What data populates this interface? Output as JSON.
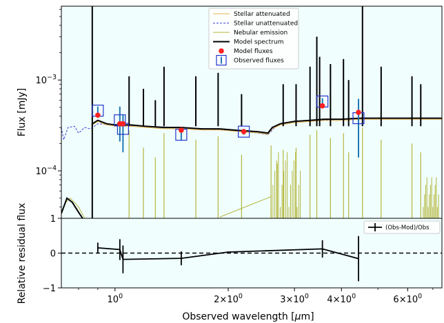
{
  "chart_data": [
    {
      "type": "line",
      "xlabel": "",
      "ylabel": "Flux [mJy]",
      "xscale": "log",
      "yscale": "log",
      "xlim": [
        0.72,
        7.4
      ],
      "ylim": [
        3e-05,
        0.0065
      ],
      "y_ticks": [
        {
          "value": 0.0001,
          "label": "10^-4"
        },
        {
          "value": 0.001,
          "label": "10^-3"
        }
      ],
      "legend": {
        "placement": "top-center",
        "entries": [
          {
            "name": "Stellar attenuated",
            "color": "#e8b24a",
            "style": "line"
          },
          {
            "name": "Stellar unattenuated",
            "color": "#3b3bd6",
            "style": "dashed"
          },
          {
            "name": "Nebular emission",
            "color": "#b5b53a",
            "style": "line"
          },
          {
            "name": "Model spectrum",
            "color": "#000000",
            "style": "thick-line"
          },
          {
            "name": "Model fluxes",
            "color": "#ff2020",
            "style": "dot"
          },
          {
            "name": "Observed fluxes",
            "color": "#1f77b4",
            "style": "errorbar-square",
            "edge_color": "#2233cc"
          }
        ]
      },
      "model_fluxes": [
        {
          "x": 0.9,
          "y": 0.00041
        },
        {
          "x": 1.03,
          "y": 0.00033
        },
        {
          "x": 1.05,
          "y": 0.00033
        },
        {
          "x": 1.5,
          "y": 0.00028
        },
        {
          "x": 2.2,
          "y": 0.00027
        },
        {
          "x": 3.56,
          "y": 0.00052
        },
        {
          "x": 4.44,
          "y": 0.00044
        }
      ],
      "observed_fluxes": [
        {
          "x": 0.9,
          "y": 0.00046,
          "err": 5e-05
        },
        {
          "x": 1.03,
          "y": 0.00036,
          "err": 0.00015
        },
        {
          "x": 1.05,
          "y": 0.00029,
          "err": 0.00013
        },
        {
          "x": 1.5,
          "y": 0.00025,
          "err": 3e-05
        },
        {
          "x": 2.2,
          "y": 0.00027,
          "err": 2e-05
        },
        {
          "x": 3.56,
          "y": 0.00058,
          "err": 5e-05
        },
        {
          "x": 4.44,
          "y": 0.00038,
          "err": 0.00024
        }
      ],
      "model_spectrum_continuum": [
        [
          0.87,
          0.00033
        ],
        [
          0.9,
          0.00036
        ],
        [
          0.95,
          0.00033
        ],
        [
          1.0,
          0.00032
        ],
        [
          1.1,
          0.00032
        ],
        [
          1.2,
          0.00031
        ],
        [
          1.35,
          0.0003
        ],
        [
          1.5,
          0.0003
        ],
        [
          1.7,
          0.00029
        ],
        [
          1.9,
          0.00029
        ],
        [
          2.1,
          0.00028
        ],
        [
          2.4,
          0.00027
        ],
        [
          2.55,
          0.00026
        ],
        [
          2.62,
          0.0003
        ],
        [
          2.75,
          0.00033
        ],
        [
          3.0,
          0.00035
        ],
        [
          3.3,
          0.00036
        ],
        [
          3.6,
          0.00037
        ],
        [
          4.0,
          0.00037
        ],
        [
          4.5,
          0.00038
        ],
        [
          5.0,
          0.00038
        ],
        [
          6.0,
          0.00038
        ],
        [
          7.4,
          0.00038
        ]
      ],
      "model_spectrum_lines": [
        {
          "x": 0.87,
          "y": 0.0065
        },
        {
          "x": 1.09,
          "y": 0.0011
        },
        {
          "x": 1.19,
          "y": 0.0008
        },
        {
          "x": 1.28,
          "y": 0.0006
        },
        {
          "x": 1.35,
          "y": 0.0014
        },
        {
          "x": 1.64,
          "y": 0.0011
        },
        {
          "x": 1.88,
          "y": 0.0012
        },
        {
          "x": 2.17,
          "y": 0.0007
        },
        {
          "x": 2.8,
          "y": 0.0009
        },
        {
          "x": 3.03,
          "y": 0.0009
        },
        {
          "x": 3.3,
          "y": 0.0014
        },
        {
          "x": 3.44,
          "y": 0.003
        },
        {
          "x": 3.5,
          "y": 0.0018
        },
        {
          "x": 3.74,
          "y": 0.0015
        },
        {
          "x": 4.05,
          "y": 0.0017
        },
        {
          "x": 4.18,
          "y": 0.001
        },
        {
          "x": 4.55,
          "y": 0.0065
        },
        {
          "x": 5.1,
          "y": 0.0014
        },
        {
          "x": 6.16,
          "y": 0.0011
        },
        {
          "x": 6.5,
          "y": 0.0009
        }
      ],
      "stellar_unattenuated": [
        [
          0.72,
          0.0003
        ],
        [
          0.73,
          0.00022
        ],
        [
          0.75,
          0.0003
        ],
        [
          0.78,
          0.00031
        ],
        [
          0.8,
          0.00026
        ],
        [
          0.83,
          0.0003
        ],
        [
          0.86,
          0.00029
        ],
        [
          0.9,
          0.00033
        ],
        [
          1.0,
          0.00032
        ],
        [
          1.2,
          0.00031
        ],
        [
          1.5,
          0.0003
        ],
        [
          2.0,
          0.00028
        ],
        [
          2.4,
          0.00026
        ],
        [
          2.55,
          0.00025
        ],
        [
          2.7,
          0.00032
        ],
        [
          3.0,
          0.00035
        ],
        [
          4.0,
          0.00037
        ],
        [
          5.0,
          0.00038
        ],
        [
          7.4,
          0.00038
        ]
      ],
      "nebular_lines": [
        {
          "x": 0.87,
          "y": 0.00025
        },
        {
          "x": 1.09,
          "y": 0.00028
        },
        {
          "x": 1.19,
          "y": 0.00018
        },
        {
          "x": 1.28,
          "y": 0.00014
        },
        {
          "x": 1.35,
          "y": 0.00026
        },
        {
          "x": 1.64,
          "y": 0.00022
        },
        {
          "x": 1.88,
          "y": 0.00024
        },
        {
          "x": 2.17,
          "y": 0.00015
        },
        {
          "x": 2.6,
          "y": 0.00019
        },
        {
          "x": 2.7,
          "y": 0.00012
        },
        {
          "x": 2.8,
          "y": 0.00017
        },
        {
          "x": 3.03,
          "y": 0.00018
        },
        {
          "x": 3.3,
          "y": 0.00025
        },
        {
          "x": 3.44,
          "y": 0.00028
        },
        {
          "x": 3.74,
          "y": 0.00023
        },
        {
          "x": 4.05,
          "y": 0.00026
        },
        {
          "x": 4.18,
          "y": 0.00016
        },
        {
          "x": 4.55,
          "y": 0.0003
        },
        {
          "x": 5.1,
          "y": 0.00022
        },
        {
          "x": 6.16,
          "y": 0.0002
        },
        {
          "x": 6.5,
          "y": 0.00016
        }
      ]
    },
    {
      "type": "line",
      "xlabel": "Observed wavelength [μm]",
      "ylabel": "Relative residual flux",
      "xscale": "log",
      "xlim": [
        0.72,
        7.4
      ],
      "ylim": [
        -1,
        1
      ],
      "y_ticks": [
        {
          "value": 1,
          "label": "1"
        },
        {
          "value": 0,
          "label": "0"
        },
        {
          "value": -1,
          "label": "−1"
        }
      ],
      "x_ticks": [
        {
          "value": 1,
          "label": "10^0"
        },
        {
          "value": 2,
          "label": "2×10^0"
        },
        {
          "value": 3,
          "label": "3×10^0"
        },
        {
          "value": 4,
          "label": "4×10^0"
        },
        {
          "value": 6,
          "label": "6×10^0"
        }
      ],
      "legend": {
        "placement": "top-right",
        "entries": [
          {
            "name": "(Obs-Mod)/Obs",
            "color": "#000000",
            "style": "errorbar"
          }
        ]
      },
      "reference_line": {
        "y": 0,
        "style": "dashed"
      },
      "series": [
        {
          "values": [
            {
              "x": 0.9,
              "y": 0.15,
              "err": 0.15
            },
            {
              "x": 1.03,
              "y": 0.1,
              "err": 0.3
            },
            {
              "x": 1.05,
              "y": -0.18,
              "err": 0.4
            },
            {
              "x": 1.5,
              "y": -0.15,
              "err": 0.2
            },
            {
              "x": 2.0,
              "y": 0.03,
              "err": 0.0
            },
            {
              "x": 3.56,
              "y": 0.12,
              "err": 0.25
            },
            {
              "x": 4.44,
              "y": -0.16,
              "err": 0.65
            }
          ]
        }
      ]
    }
  ]
}
